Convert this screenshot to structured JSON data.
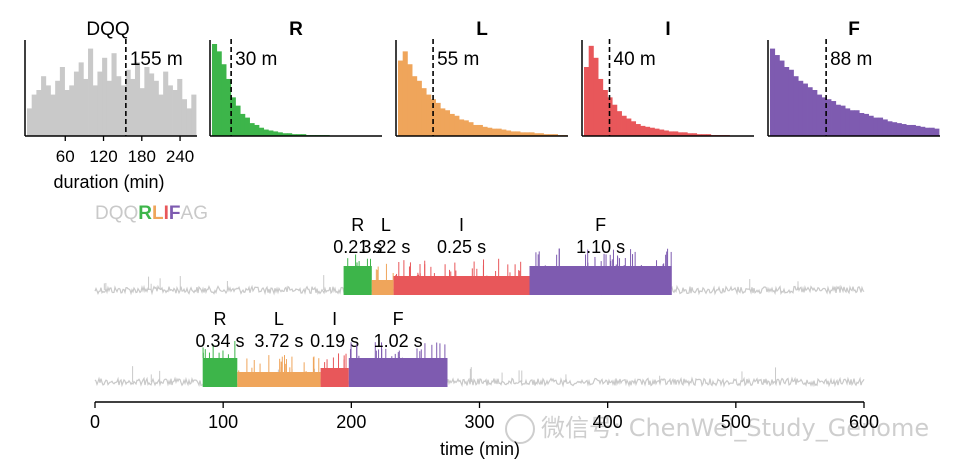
{
  "chart_data": [
    {
      "type": "histogram",
      "panel": "DQQ",
      "title": "DQQ",
      "xlabel": "duration (min)",
      "xticks": [
        60,
        120,
        180,
        240
      ],
      "xlim": [
        0,
        265
      ],
      "median_label": "155 m",
      "median": 155,
      "color": "#c9c9c9",
      "bin_heights": [
        0.3,
        0.45,
        0.5,
        0.65,
        0.55,
        0.45,
        0.6,
        0.75,
        0.5,
        0.55,
        0.7,
        0.8,
        0.62,
        0.95,
        0.55,
        0.7,
        0.85,
        0.6,
        0.9,
        0.65,
        0.55,
        0.72,
        0.62,
        0.8,
        0.52,
        0.75,
        0.68,
        0.6,
        0.45,
        0.7,
        0.55,
        0.5,
        0.62,
        0.4,
        0.3,
        0.45
      ]
    },
    {
      "type": "histogram",
      "panel": "R",
      "title": "R",
      "median_label": "30 m",
      "median": 30,
      "xlim": [
        0,
        265
      ],
      "color": "#3db54a",
      "bin_heights": [
        1.0,
        0.92,
        0.78,
        0.62,
        0.42,
        0.33,
        0.24,
        0.2,
        0.14,
        0.12,
        0.09,
        0.07,
        0.06,
        0.05,
        0.04,
        0.03,
        0.03,
        0.02,
        0.02,
        0.02,
        0.01,
        0.01,
        0.01,
        0.01,
        0.01,
        0,
        0,
        0,
        0,
        0,
        0,
        0,
        0,
        0,
        0,
        0
      ]
    },
    {
      "type": "histogram",
      "panel": "L",
      "title": "L",
      "median_label": "55 m",
      "median": 55,
      "xlim": [
        0,
        265
      ],
      "color": "#efa55b",
      "bin_heights": [
        0.82,
        0.92,
        0.78,
        0.65,
        0.6,
        0.52,
        0.45,
        0.4,
        0.36,
        0.3,
        0.28,
        0.24,
        0.22,
        0.18,
        0.17,
        0.15,
        0.12,
        0.12,
        0.1,
        0.09,
        0.08,
        0.08,
        0.07,
        0.06,
        0.05,
        0.05,
        0.04,
        0.04,
        0.04,
        0.03,
        0.03,
        0.02,
        0.02,
        0.02,
        0.01,
        0.01
      ]
    },
    {
      "type": "histogram",
      "panel": "I",
      "title": "I",
      "median_label": "40 m",
      "median": 40,
      "xlim": [
        0,
        265
      ],
      "color": "#e8575a",
      "bin_heights": [
        0.75,
        0.98,
        0.85,
        0.62,
        0.5,
        0.42,
        0.34,
        0.27,
        0.22,
        0.19,
        0.16,
        0.13,
        0.11,
        0.1,
        0.09,
        0.08,
        0.07,
        0.06,
        0.05,
        0.05,
        0.04,
        0.04,
        0.03,
        0.03,
        0.02,
        0.02,
        0.02,
        0.01,
        0.01,
        0.01,
        0.01,
        0,
        0,
        0,
        0,
        0
      ]
    },
    {
      "type": "histogram",
      "panel": "F",
      "title": "F",
      "median_label": "88 m",
      "median": 88,
      "xlim": [
        0,
        265
      ],
      "color": "#7e5bb0",
      "bin_heights": [
        0.95,
        0.88,
        0.82,
        0.75,
        0.72,
        0.65,
        0.6,
        0.57,
        0.53,
        0.5,
        0.45,
        0.42,
        0.4,
        0.38,
        0.34,
        0.33,
        0.3,
        0.28,
        0.28,
        0.25,
        0.24,
        0.22,
        0.2,
        0.2,
        0.18,
        0.16,
        0.15,
        0.14,
        0.13,
        0.12,
        0.12,
        0.11,
        0.1,
        0.09,
        0.09,
        0.08
      ]
    },
    {
      "type": "trace",
      "panel": "time traces",
      "sequence_label": [
        {
          "text": "DQQ",
          "color": "#c9c9c9"
        },
        {
          "text": "R",
          "color": "#3db54a"
        },
        {
          "text": "L",
          "color": "#efa55b"
        },
        {
          "text": "I",
          "color": "#e8575a"
        },
        {
          "text": "F",
          "color": "#7e5bb0"
        },
        {
          "text": "AG",
          "color": "#c9c9c9"
        }
      ],
      "xlabel": "time (min)",
      "xlim": [
        0,
        600
      ],
      "xticks": [
        0,
        100,
        200,
        300,
        400,
        500,
        600
      ],
      "traces": [
        {
          "segments": [
            {
              "residue": "R",
              "start": 194,
              "end": 216,
              "dwell_label": "0.21 s",
              "color": "#3db54a"
            },
            {
              "residue": "L",
              "start": 216,
              "end": 233,
              "dwell_label": "3.22 s",
              "color": "#efa55b"
            },
            {
              "residue": "I",
              "start": 233,
              "end": 339,
              "dwell_label": "0.25 s",
              "color": "#e8575a"
            },
            {
              "residue": "F",
              "start": 339,
              "end": 450,
              "dwell_label": "1.10 s",
              "color": "#7e5bb0"
            }
          ]
        },
        {
          "segments": [
            {
              "residue": "R",
              "start": 84,
              "end": 111,
              "dwell_label": "0.34 s",
              "color": "#3db54a"
            },
            {
              "residue": "L",
              "start": 111,
              "end": 176,
              "dwell_label": "3.72 s",
              "color": "#efa55b"
            },
            {
              "residue": "I",
              "start": 176,
              "end": 198,
              "dwell_label": "0.19 s",
              "color": "#e8575a"
            },
            {
              "residue": "F",
              "start": 198,
              "end": 275,
              "dwell_label": "1.02 s",
              "color": "#7e5bb0"
            }
          ]
        }
      ],
      "baseline_color": "#c9c9c9"
    }
  ],
  "watermark": "微信号: ChenWei_Study_Genome"
}
